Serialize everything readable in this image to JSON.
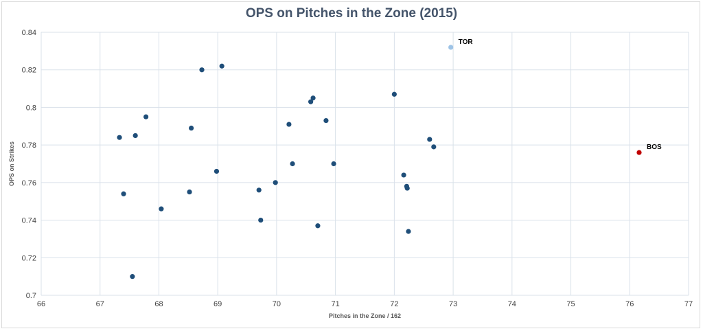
{
  "chart_data": {
    "type": "scatter",
    "title": "OPS on Pitches in the Zone (2015)",
    "xlabel": "Pitches in the Zone / 162",
    "ylabel": "OPS on Strikes",
    "xlim": [
      66,
      77
    ],
    "ylim": [
      0.7,
      0.84
    ],
    "x_ticks": [
      66,
      67,
      68,
      69,
      70,
      71,
      72,
      73,
      74,
      75,
      76,
      77
    ],
    "y_ticks": [
      0.7,
      0.72,
      0.74,
      0.76,
      0.78,
      0.8,
      0.82,
      0.84
    ],
    "y_tick_labels": [
      "0.7",
      "0.72",
      "0.74",
      "0.76",
      "0.78",
      "0.8",
      "0.82",
      "0.84"
    ],
    "grid": true,
    "colors": {
      "default": "#1f4e79",
      "highlight_light": "#9dc3e6",
      "highlight_red": "#c00000"
    },
    "points": [
      {
        "x": 67.33,
        "y": 0.784
      },
      {
        "x": 67.4,
        "y": 0.754
      },
      {
        "x": 67.55,
        "y": 0.71
      },
      {
        "x": 67.6,
        "y": 0.785
      },
      {
        "x": 67.78,
        "y": 0.795
      },
      {
        "x": 68.04,
        "y": 0.746
      },
      {
        "x": 68.52,
        "y": 0.755
      },
      {
        "x": 68.55,
        "y": 0.789
      },
      {
        "x": 68.73,
        "y": 0.82
      },
      {
        "x": 68.98,
        "y": 0.766
      },
      {
        "x": 69.07,
        "y": 0.822
      },
      {
        "x": 69.7,
        "y": 0.756
      },
      {
        "x": 69.73,
        "y": 0.74
      },
      {
        "x": 69.98,
        "y": 0.76
      },
      {
        "x": 70.21,
        "y": 0.791
      },
      {
        "x": 70.27,
        "y": 0.77
      },
      {
        "x": 70.58,
        "y": 0.803
      },
      {
        "x": 70.62,
        "y": 0.805
      },
      {
        "x": 70.7,
        "y": 0.737
      },
      {
        "x": 70.84,
        "y": 0.793
      },
      {
        "x": 70.97,
        "y": 0.77
      },
      {
        "x": 72.0,
        "y": 0.807
      },
      {
        "x": 72.16,
        "y": 0.764
      },
      {
        "x": 72.21,
        "y": 0.758
      },
      {
        "x": 72.22,
        "y": 0.757
      },
      {
        "x": 72.24,
        "y": 0.734
      },
      {
        "x": 72.6,
        "y": 0.783
      },
      {
        "x": 72.67,
        "y": 0.779
      },
      {
        "x": 72.96,
        "y": 0.832,
        "label": "TOR",
        "highlight": "light"
      },
      {
        "x": 76.16,
        "y": 0.776,
        "label": "BOS",
        "highlight": "red"
      }
    ]
  }
}
